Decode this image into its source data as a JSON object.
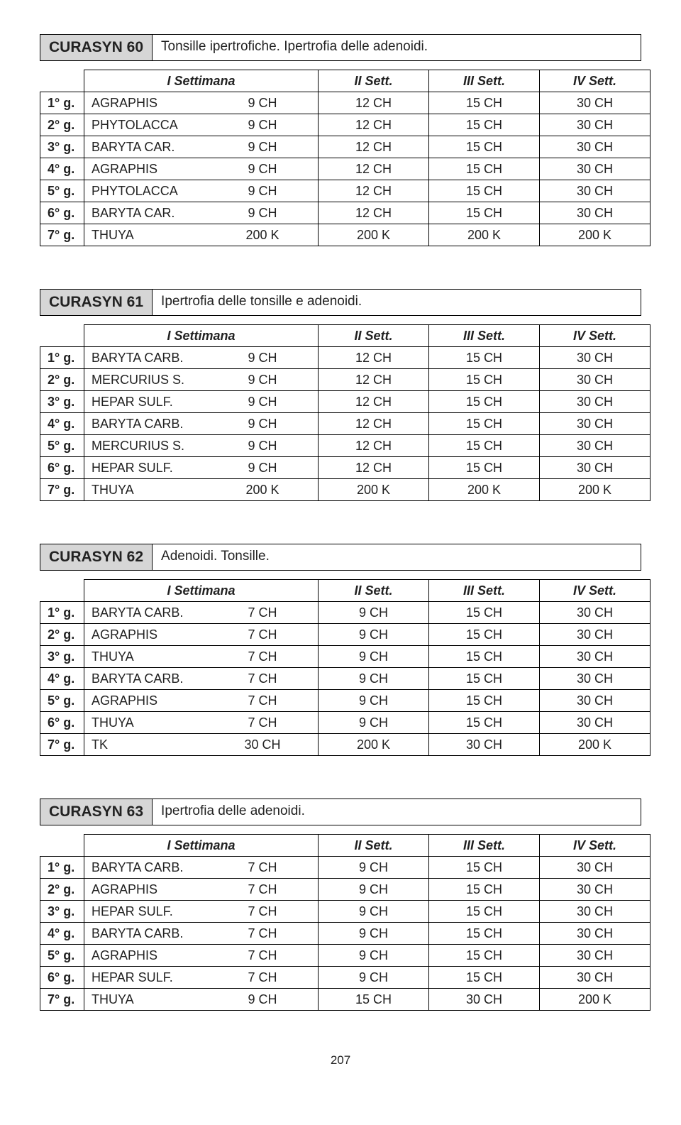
{
  "page_number": "207",
  "headers": {
    "w1": "I Settimana",
    "w2": "II Sett.",
    "w3": "III Sett.",
    "w4": "IV Sett."
  },
  "sections": [
    {
      "id": "60",
      "title": "CURASYN  60",
      "desc": "Tonsille ipertrofiche. Ipertrofia delle adenoidi.",
      "style": "merged",
      "rows": [
        {
          "day": "1° g.",
          "rem": "AGRAPHIS",
          "w1": "9 CH",
          "w2": "12 CH",
          "w3": "15 CH",
          "w4": "30 CH"
        },
        {
          "day": "2° g.",
          "rem": "PHYTOLACCA",
          "w1": "9 CH",
          "w2": "12 CH",
          "w3": "15 CH",
          "w4": "30 CH"
        },
        {
          "day": "3° g.",
          "rem": "BARYTA CAR.",
          "w1": "9 CH",
          "w2": "12 CH",
          "w3": "15 CH",
          "w4": "30 CH"
        },
        {
          "day": "4° g.",
          "rem": "AGRAPHIS",
          "w1": "9 CH",
          "w2": "12 CH",
          "w3": "15 CH",
          "w4": "30 CH"
        },
        {
          "day": "5° g.",
          "rem": "PHYTOLACCA",
          "w1": "9 CH",
          "w2": "12 CH",
          "w3": "15 CH",
          "w4": "30 CH"
        },
        {
          "day": "6° g.",
          "rem": "BARYTA CAR.",
          "w1": "9 CH",
          "w2": "12 CH",
          "w3": "15 CH",
          "w4": "30 CH"
        },
        {
          "day": "7° g.",
          "rem": "THUYA",
          "w1": "200 K",
          "w2": "200 K",
          "w3": "200 K",
          "w4": "200 K"
        }
      ]
    },
    {
      "id": "61",
      "title": "CURASYN  61",
      "desc": "Ipertrofia delle tonsille e adenoidi.",
      "style": "split",
      "rows": [
        {
          "day": "1° g.",
          "rem": "BARYTA CARB.",
          "w1": "9 CH",
          "w2": "12 CH",
          "w3": "15 CH",
          "w4": "30 CH"
        },
        {
          "day": "2° g.",
          "rem": "MERCURIUS S.",
          "w1": "9 CH",
          "w2": "12 CH",
          "w3": "15 CH",
          "w4": "30 CH"
        },
        {
          "day": "3° g.",
          "rem": "HEPAR SULF.",
          "w1": "9 CH",
          "w2": "12 CH",
          "w3": "15 CH",
          "w4": "30 CH"
        },
        {
          "day": "4° g.",
          "rem": "BARYTA CARB.",
          "w1": "9 CH",
          "w2": "12 CH",
          "w3": "15 CH",
          "w4": "30 CH"
        },
        {
          "day": "5° g.",
          "rem": "MERCURIUS S.",
          "w1": "9 CH",
          "w2": "12 CH",
          "w3": "15 CH",
          "w4": "30 CH"
        },
        {
          "day": "6° g.",
          "rem": "HEPAR SULF.",
          "w1": "9 CH",
          "w2": "12 CH",
          "w3": "15 CH",
          "w4": "30 CH"
        },
        {
          "day": "7° g.",
          "rem": "THUYA",
          "w1": "200 K",
          "w2": "200 K",
          "w3": "200 K",
          "w4": "200 K"
        }
      ]
    },
    {
      "id": "62",
      "title": "CURASYN  62",
      "desc": "Adenoidi. Tonsille.",
      "style": "split",
      "rows": [
        {
          "day": "1° g.",
          "rem": "BARYTA CARB.",
          "w1": "7 CH",
          "w2": "9 CH",
          "w3": "15 CH",
          "w4": "30 CH"
        },
        {
          "day": "2° g.",
          "rem": "AGRAPHIS",
          "w1": "7 CH",
          "w2": "9 CH",
          "w3": "15 CH",
          "w4": "30 CH"
        },
        {
          "day": "3° g.",
          "rem": "THUYA",
          "w1": "7 CH",
          "w2": "9 CH",
          "w3": "15 CH",
          "w4": "30 CH"
        },
        {
          "day": "4° g.",
          "rem": "BARYTA CARB.",
          "w1": "7 CH",
          "w2": "9 CH",
          "w3": "15 CH",
          "w4": "30 CH"
        },
        {
          "day": "5° g.",
          "rem": "AGRAPHIS",
          "w1": "7 CH",
          "w2": "9 CH",
          "w3": "15 CH",
          "w4": "30 CH"
        },
        {
          "day": "6° g.",
          "rem": "THUYA",
          "w1": "7 CH",
          "w2": "9 CH",
          "w3": "15 CH",
          "w4": "30 CH"
        },
        {
          "day": "7° g.",
          "rem": "TK",
          "w1": "30 CH",
          "w2": "200 K",
          "w3": "30 CH",
          "w4": "200 K"
        }
      ]
    },
    {
      "id": "63",
      "title": "CURASYN  63",
      "desc": "Ipertrofia delle adenoidi.",
      "style": "split",
      "rows": [
        {
          "day": "1° g.",
          "rem": "BARYTA CARB.",
          "w1": "7 CH",
          "w2": "9 CH",
          "w3": "15 CH",
          "w4": "30 CH"
        },
        {
          "day": "2° g.",
          "rem": "AGRAPHIS",
          "w1": "7 CH",
          "w2": "9 CH",
          "w3": "15 CH",
          "w4": "30 CH"
        },
        {
          "day": "3° g.",
          "rem": "HEPAR SULF.",
          "w1": "7 CH",
          "w2": "9 CH",
          "w3": "15 CH",
          "w4": "30 CH"
        },
        {
          "day": "4° g.",
          "rem": "BARYTA CARB.",
          "w1": "7 CH",
          "w2": "9 CH",
          "w3": "15 CH",
          "w4": "30 CH"
        },
        {
          "day": "5° g.",
          "rem": "AGRAPHIS",
          "w1": "7 CH",
          "w2": "9 CH",
          "w3": "15 CH",
          "w4": "30 CH"
        },
        {
          "day": "6° g.",
          "rem": "HEPAR SULF.",
          "w1": "7 CH",
          "w2": "9 CH",
          "w3": "15 CH",
          "w4": "30 CH"
        },
        {
          "day": "7° g.",
          "rem": "THUYA",
          "w1": "9 CH",
          "w2": "15 CH",
          "w3": "30 CH",
          "w4": "200 K"
        }
      ]
    }
  ]
}
